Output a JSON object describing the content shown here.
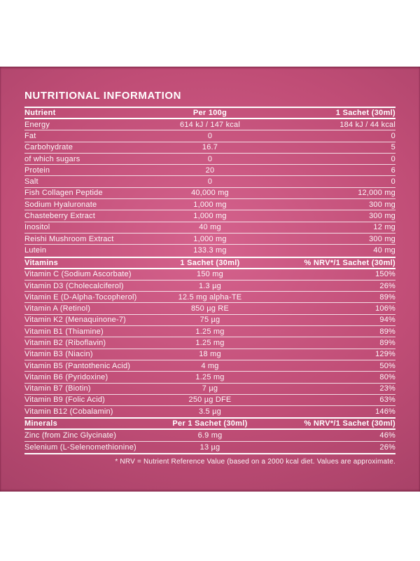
{
  "page": {
    "title": "NUTRITIONAL INFORMATION",
    "footnote": "* NRV = Nutrient Reference Value (based on a 2000 kcal diet. Values are approximate."
  },
  "colors": {
    "panel_center": "#d5628d",
    "panel_mid": "#c04d76",
    "panel_edge": "#a03e63",
    "text": "#ffffff",
    "page_background": "#ffffff"
  },
  "table": {
    "sections": [
      {
        "header": {
          "col1": "Nutrient",
          "col2": "Per 100g",
          "col3": "1 Sachet (30ml)"
        },
        "rows": [
          {
            "name": "Energy",
            "v1": "614 kJ / 147 kcal",
            "v2": "184 kJ / 44 kcal"
          },
          {
            "name": "Fat",
            "v1": "0",
            "v2": "0"
          },
          {
            "name": "Carbohydrate",
            "v1": "16.7",
            "v2": "5"
          },
          {
            "name": "of which sugars",
            "v1": "0",
            "v2": "0"
          },
          {
            "name": "Protein",
            "v1": "20",
            "v2": "6"
          },
          {
            "name": "Salt",
            "v1": "0",
            "v2": "0"
          },
          {
            "name": "Fish Collagen Peptide",
            "v1": "40,000 mg",
            "v2": "12,000 mg"
          },
          {
            "name": "Sodium Hyaluronate",
            "v1": "1,000 mg",
            "v2": "300 mg"
          },
          {
            "name": "Chasteberry Extract",
            "v1": "1,000 mg",
            "v2": "300 mg"
          },
          {
            "name": "Inositol",
            "v1": "40 mg",
            "v2": "12 mg"
          },
          {
            "name": "Reishi Mushroom Extract",
            "v1": "1,000 mg",
            "v2": "300 mg"
          },
          {
            "name": "Lutein",
            "v1": "133.3 mg",
            "v2": "40 mg"
          }
        ]
      },
      {
        "header": {
          "col1": "Vitamins",
          "col2": "1 Sachet (30ml)",
          "col3": "% NRV*/1 Sachet (30ml)"
        },
        "rows": [
          {
            "name": "Vitamin C (Sodium Ascorbate)",
            "v1": "150 mg",
            "v2": "150%"
          },
          {
            "name": "Vitamin D3 (Cholecalciferol)",
            "v1": "1.3 µg",
            "v2": "26%"
          },
          {
            "name": "Vitamin E (D-Alpha-Tocopherol)",
            "v1": "12.5 mg alpha-TE",
            "v2": "89%"
          },
          {
            "name": "Vitamin A (Retinol)",
            "v1": "850 µg RE",
            "v2": "106%"
          },
          {
            "name": "Vitamin K2 (Menaquinone-7)",
            "v1": "75 µg",
            "v2": "94%"
          },
          {
            "name": "Vitamin B1 (Thiamine)",
            "v1": "1.25 mg",
            "v2": "89%"
          },
          {
            "name": "Vitamin B2 (Riboflavin)",
            "v1": "1.25 mg",
            "v2": "89%"
          },
          {
            "name": "Vitamin B3 (Niacin)",
            "v1": "18 mg",
            "v2": "129%"
          },
          {
            "name": "Vitamin B5 (Pantothenic Acid)",
            "v1": "4 mg",
            "v2": "50%"
          },
          {
            "name": "Vitamin B6 (Pyridoxine)",
            "v1": "1.25 mg",
            "v2": "80%"
          },
          {
            "name": "Vitamin B7 (Biotin)",
            "v1": "7 µg",
            "v2": "23%"
          },
          {
            "name": "Vitamin B9 (Folic Acid)",
            "v1": "250 µg DFE",
            "v2": "63%"
          },
          {
            "name": "Vitamin B12 (Cobalamin)",
            "v1": "3.5 µg",
            "v2": "146%"
          }
        ]
      },
      {
        "header": {
          "col1": "Minerals",
          "col2": "Per 1 Sachet (30ml)",
          "col3": "% NRV*/1 Sachet (30ml)"
        },
        "rows": [
          {
            "name": "Zinc (from Zinc Glycinate)",
            "v1": "6.9 mg",
            "v2": "46%"
          },
          {
            "name": "Selenium (L-Selenomethionine)",
            "v1": "13 µg",
            "v2": "26%"
          }
        ]
      }
    ]
  }
}
